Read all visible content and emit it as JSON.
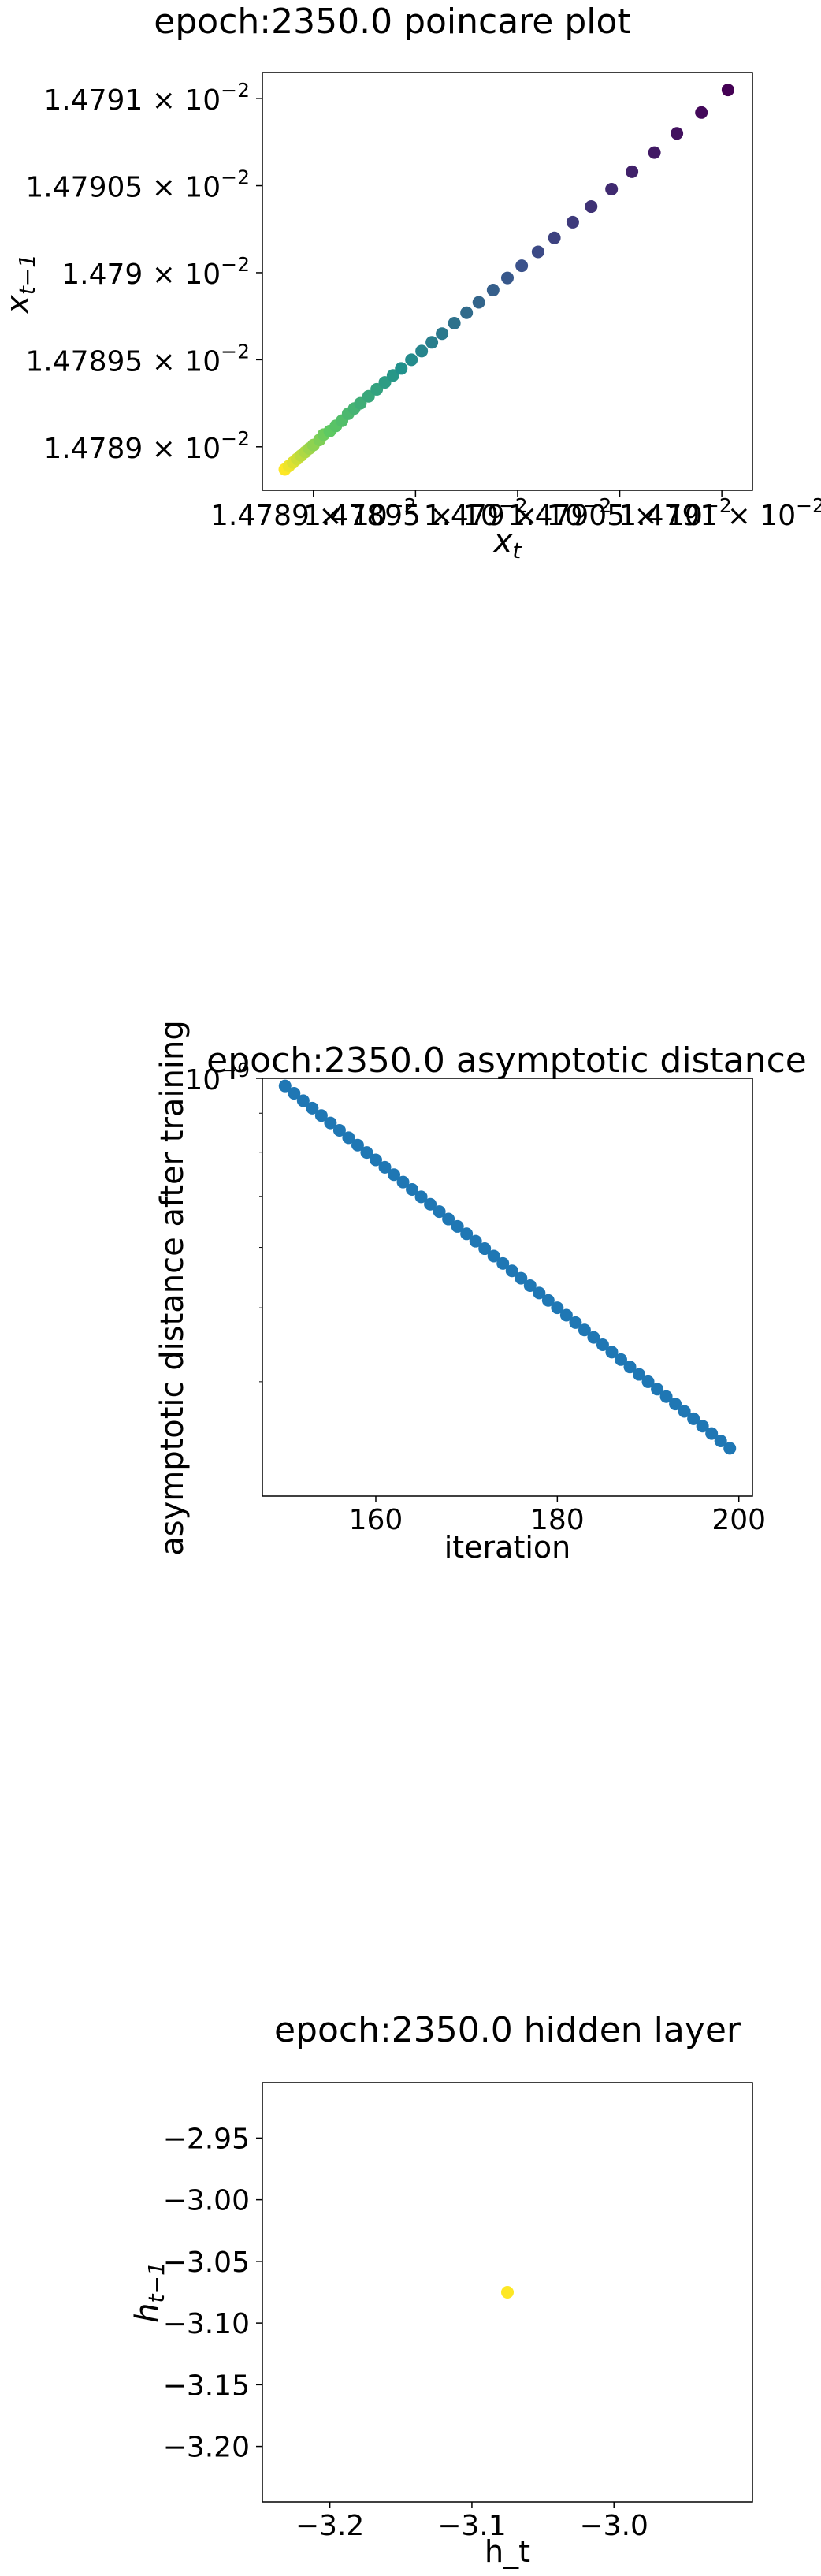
{
  "chart_data": [
    {
      "type": "scatter",
      "title": "epoch:2350.0 poincare plot",
      "xlabel_base": "x",
      "xlabel_sub": "t",
      "ylabel_base": "x",
      "ylabel_sub": "t−1",
      "xlim": [
        1.478875,
        1.479115
      ],
      "ylim": [
        1.478875,
        1.479115
      ],
      "x_ticks": [
        {
          "value": 1.4789,
          "mant": "1.4789",
          "exp": "−2"
        },
        {
          "value": 1.47895,
          "mant": "1.47895",
          "exp": "−2"
        },
        {
          "value": 1.479,
          "mant": "1.479",
          "exp": "−2"
        },
        {
          "value": 1.47905,
          "mant": "1.47905",
          "exp": "−2"
        },
        {
          "value": 1.4791,
          "mant": "1.4791",
          "exp": "−2"
        }
      ],
      "y_ticks": [
        {
          "value": 1.4789,
          "mant": "1.4789",
          "exp": "−2"
        },
        {
          "value": 1.47895,
          "mant": "1.47895",
          "exp": "−2"
        },
        {
          "value": 1.479,
          "mant": "1.479",
          "exp": "−2"
        },
        {
          "value": 1.47905,
          "mant": "1.47905",
          "exp": "−2"
        },
        {
          "value": 1.4791,
          "mant": "1.4791",
          "exp": "−2"
        }
      ],
      "tick_multiplier": "× 10",
      "colormap": "viridis",
      "points": [
        [
          1.478886,
          1.478887
        ],
        [
          1.478888,
          1.478889
        ],
        [
          1.47889,
          1.478891
        ],
        [
          1.478892,
          1.478893
        ],
        [
          1.478894,
          1.478895
        ],
        [
          1.478896,
          1.478897
        ],
        [
          1.478898,
          1.478899
        ],
        [
          1.4789,
          1.478901
        ],
        [
          1.478903,
          1.478904
        ],
        [
          1.478905,
          1.478907
        ],
        [
          1.478908,
          1.478909
        ],
        [
          1.478911,
          1.478912
        ],
        [
          1.478914,
          1.478915
        ],
        [
          1.478917,
          1.478919
        ],
        [
          1.47892,
          1.478922
        ],
        [
          1.478923,
          1.478925
        ],
        [
          1.478927,
          1.478929
        ],
        [
          1.478931,
          1.478933
        ],
        [
          1.478935,
          1.478937
        ],
        [
          1.478939,
          1.478941
        ],
        [
          1.478943,
          1.478945
        ],
        [
          1.478948,
          1.47895
        ],
        [
          1.478953,
          1.478955
        ],
        [
          1.478958,
          1.47896
        ],
        [
          1.478963,
          1.478965
        ],
        [
          1.478969,
          1.478971
        ],
        [
          1.478975,
          1.478977
        ],
        [
          1.478981,
          1.478983
        ],
        [
          1.478988,
          1.47899
        ],
        [
          1.478995,
          1.478997
        ],
        [
          1.479002,
          1.479004
        ],
        [
          1.47901,
          1.479012
        ],
        [
          1.479018,
          1.47902
        ],
        [
          1.479027,
          1.479029
        ],
        [
          1.479036,
          1.479038
        ],
        [
          1.479046,
          1.479048
        ],
        [
          1.479056,
          1.479058
        ],
        [
          1.479067,
          1.479069
        ],
        [
          1.479078,
          1.47908
        ],
        [
          1.47909,
          1.479092
        ],
        [
          1.479103,
          1.479105
        ]
      ]
    },
    {
      "type": "scatter",
      "title": "epoch:2350.0 asymptotic distance",
      "xlabel": "iteration",
      "ylabel": "asymptotic distance after training",
      "xlim": [
        147.5,
        201.5
      ],
      "ylim_log10": [
        -9.548,
        -9.0
      ],
      "yscale": "log",
      "x_ticks": [
        "160",
        "180",
        "200"
      ],
      "y_tick": {
        "log10": -9,
        "base": "10",
        "exp": "−9"
      },
      "color": "#1f77b4",
      "x": [
        150,
        151,
        152,
        153,
        154,
        155,
        156,
        157,
        158,
        159,
        160,
        161,
        162,
        163,
        164,
        165,
        166,
        167,
        168,
        169,
        170,
        171,
        172,
        173,
        174,
        175,
        176,
        177,
        178,
        179,
        180,
        181,
        182,
        183,
        184,
        185,
        186,
        187,
        188,
        189,
        190,
        191,
        192,
        193,
        194,
        195,
        196,
        197,
        198,
        199
      ],
      "log10_y": [
        -9.01,
        -9.0197,
        -9.0294,
        -9.0391,
        -9.0488,
        -9.0585,
        -9.0682,
        -9.0779,
        -9.0876,
        -9.0973,
        -9.107,
        -9.1167,
        -9.1264,
        -9.1361,
        -9.1458,
        -9.1555,
        -9.1652,
        -9.1749,
        -9.1846,
        -9.1943,
        -9.204,
        -9.2137,
        -9.2234,
        -9.2331,
        -9.2428,
        -9.2525,
        -9.2622,
        -9.2719,
        -9.2816,
        -9.2913,
        -9.301,
        -9.3107,
        -9.3204,
        -9.3301,
        -9.3398,
        -9.3495,
        -9.3592,
        -9.3689,
        -9.3786,
        -9.3883,
        -9.398,
        -9.4077,
        -9.4174,
        -9.4271,
        -9.4368,
        -9.4465,
        -9.4562,
        -9.4659,
        -9.4756,
        -9.4853
      ]
    },
    {
      "type": "scatter",
      "title": "epoch:2350.0 hidden layer",
      "xlabel": "h_t",
      "ylabel_base": "h",
      "ylabel_sub": "t−1",
      "xlim": [
        -3.2475,
        -2.9025
      ],
      "ylim": [
        -3.245,
        -2.905
      ],
      "x_ticks": [
        {
          "value": -3.2,
          "label": "−3.2"
        },
        {
          "value": -3.1,
          "label": "−3.1"
        },
        {
          "value": -3.0,
          "label": "−3.0"
        }
      ],
      "y_ticks": [
        {
          "value": -2.95,
          "label": "−2.95"
        },
        {
          "value": -3.0,
          "label": "−3.00"
        },
        {
          "value": -3.05,
          "label": "−3.05"
        },
        {
          "value": -3.1,
          "label": "−3.10"
        },
        {
          "value": -3.15,
          "label": "−3.15"
        },
        {
          "value": -3.2,
          "label": "−3.20"
        }
      ],
      "color": "#fde725",
      "points": [
        [
          -3.075,
          -3.075
        ]
      ]
    }
  ]
}
